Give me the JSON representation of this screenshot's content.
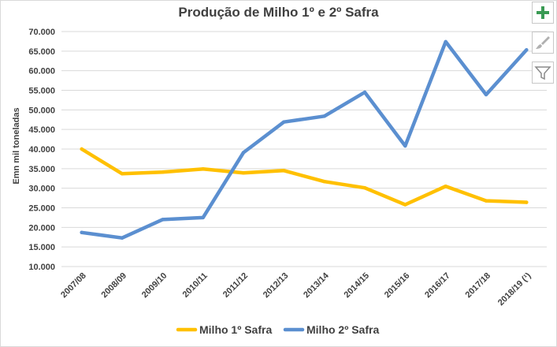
{
  "chart_data": {
    "type": "line",
    "title": "Produção de Milho 1º e 2º Safra",
    "xlabel": "",
    "ylabel": "Emn mil toneladas",
    "categories": [
      "2007/08",
      "2008/09",
      "2009/10",
      "2010/11",
      "2011/12",
      "2012/13",
      "2013/14",
      "2014/15",
      "2015/16",
      "2016/17",
      "2017/18",
      "2018/19 (¹)"
    ],
    "ylim": [
      10000,
      70000
    ],
    "ytick_step": 5000,
    "yticks": [
      "10.000",
      "15.000",
      "20.000",
      "25.000",
      "30.000",
      "35.000",
      "40.000",
      "45.000",
      "50.000",
      "55.000",
      "60.000",
      "65.000",
      "70.000"
    ],
    "grid": true,
    "legend_position": "bottom",
    "series": [
      {
        "name": "Milho 1º Safra",
        "color": "#FFC000",
        "values": [
          40000,
          33700,
          34100,
          34900,
          33900,
          34500,
          31700,
          30100,
          25800,
          30500,
          26800,
          26400
        ]
      },
      {
        "name": "Milho 2º Safra",
        "color": "#5B8FD0",
        "values": [
          18700,
          17300,
          22000,
          22500,
          39100,
          46900,
          48400,
          54500,
          40800,
          67400,
          53900,
          65300
        ]
      }
    ]
  },
  "toolbar": {
    "add_icon": "plus-icon",
    "style_icon": "brush-icon",
    "filter_icon": "funnel-icon"
  }
}
